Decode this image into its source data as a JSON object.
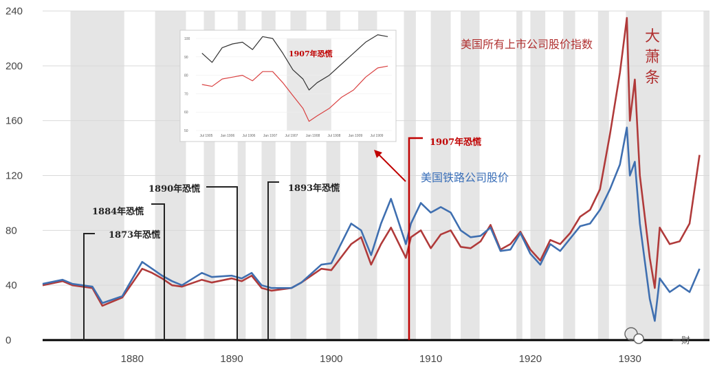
{
  "chart_data": [
    {
      "type": "line",
      "title": "",
      "xlabel": "",
      "ylabel": "",
      "xlim": [
        1871,
        1938
      ],
      "ylim": [
        0,
        240
      ],
      "x_ticks": [
        "1880",
        "1890",
        "1900",
        "1910",
        "1920",
        "1930"
      ],
      "y_ticks": [
        "0",
        "40",
        "80",
        "120",
        "160",
        "200",
        "240"
      ],
      "grid": "horizontal",
      "shaded_periods": [
        [
          1873.8,
          1879.2
        ],
        [
          1882.3,
          1885.4
        ],
        [
          1887.2,
          1888.3
        ],
        [
          1890.6,
          1891.4
        ],
        [
          1893.0,
          1894.4
        ],
        [
          1895.9,
          1897.5
        ],
        [
          1899.5,
          1900.9
        ],
        [
          1902.7,
          1904.6
        ],
        [
          1907.3,
          1908.5
        ],
        [
          1910.0,
          1912.0
        ],
        [
          1913.0,
          1914.9
        ],
        [
          1918.6,
          1919.2
        ],
        [
          1920.0,
          1921.5
        ],
        [
          1923.3,
          1924.5
        ],
        [
          1926.8,
          1927.9
        ],
        [
          1929.6,
          1933.2
        ],
        [
          1937.4,
          1938.0
        ]
      ],
      "series": [
        {
          "name": "美国所有上市公司股价指数",
          "color": "#b03a3a",
          "x": [
            1871,
            1873,
            1874,
            1876,
            1877,
            1879,
            1881,
            1882,
            1883,
            1884,
            1885,
            1887,
            1888,
            1890,
            1891,
            1892,
            1893,
            1894,
            1896,
            1897,
            1899,
            1900,
            1902,
            1903,
            1904,
            1905,
            1906,
            1907.5,
            1908,
            1909,
            1910,
            1911,
            1912,
            1913,
            1914,
            1915,
            1916,
            1917,
            1918,
            1919,
            1920,
            1921,
            1922,
            1923,
            1924,
            1925,
            1926,
            1927,
            1928,
            1929,
            1929.7,
            1930,
            1930.5,
            1931,
            1932,
            1932.5,
            1933,
            1934,
            1935,
            1936,
            1937
          ],
          "values": [
            40,
            43,
            40,
            38,
            25,
            31,
            52,
            49,
            45,
            40,
            39,
            44,
            42,
            45,
            43,
            47,
            38,
            36,
            38,
            42,
            52,
            51,
            70,
            75,
            55,
            70,
            82,
            60,
            75,
            80,
            67,
            77,
            80,
            68,
            67,
            72,
            84,
            66,
            70,
            79,
            66,
            58,
            73,
            70,
            78,
            90,
            95,
            110,
            150,
            195,
            235,
            160,
            190,
            120,
            60,
            38,
            82,
            70,
            72,
            85,
            135
          ]
        },
        {
          "name": "美国铁路公司股价",
          "color": "#3f6fb0",
          "x": [
            1871,
            1873,
            1874,
            1876,
            1877,
            1879,
            1881,
            1882,
            1883,
            1884,
            1885,
            1887,
            1888,
            1890,
            1891,
            1892,
            1893,
            1894,
            1896,
            1897,
            1899,
            1900,
            1902,
            1903,
            1904,
            1905,
            1906,
            1907.5,
            1908,
            1909,
            1910,
            1911,
            1912,
            1913,
            1914,
            1915,
            1916,
            1917,
            1918,
            1919,
            1920,
            1921,
            1922,
            1923,
            1924,
            1925,
            1926,
            1927,
            1928,
            1929,
            1929.7,
            1930,
            1930.5,
            1931,
            1932,
            1932.5,
            1933,
            1934,
            1935,
            1936,
            1937
          ],
          "values": [
            41,
            44,
            41,
            39,
            27,
            32,
            57,
            52,
            47,
            43,
            40,
            49,
            46,
            47,
            45,
            49,
            40,
            38,
            38,
            42,
            55,
            56,
            85,
            80,
            62,
            85,
            103,
            70,
            85,
            100,
            93,
            97,
            93,
            80,
            75,
            76,
            82,
            65,
            66,
            78,
            63,
            55,
            70,
            65,
            74,
            83,
            85,
            95,
            110,
            128,
            155,
            120,
            130,
            85,
            30,
            14,
            45,
            35,
            40,
            35,
            52
          ]
        }
      ],
      "annotations": [
        {
          "text": "1873年恐慌",
          "x": 1873.3
        },
        {
          "text": "1884年恐慌",
          "x": 1884.0
        },
        {
          "text": "1890年恐慌",
          "x": 1890.1
        },
        {
          "text": "1893年恐慌",
          "x": 1893.1
        },
        {
          "text": "1907年恐慌",
          "x": 1907.1
        },
        {
          "text": "大萧条"
        }
      ]
    },
    {
      "type": "line",
      "title": "1907年恐慌",
      "xlabel": "",
      "ylabel": "",
      "ylim": [
        50,
        100
      ],
      "x_ticks": [
        "Jul 1905",
        "Jan 1906",
        "Jul 1906",
        "Jan 1907",
        "Jul 1907",
        "Jan 1908",
        "Jul 1908",
        "Jan 1909",
        "Jul 1909"
      ],
      "y_ticks": [
        "50",
        "60",
        "70",
        "80",
        "90",
        "100"
      ],
      "shaded_periods": [
        [
          1907.35,
          1908.45
        ]
      ],
      "series": [
        {
          "name": "",
          "color": "#333333",
          "x": [
            1905.25,
            1905.5,
            1905.75,
            1906.0,
            1906.25,
            1906.5,
            1906.75,
            1907.0,
            1907.25,
            1907.5,
            1907.75,
            1907.9,
            1908.1,
            1908.4,
            1908.7,
            1909.0,
            1909.3,
            1909.6,
            1909.85
          ],
          "values": [
            92,
            87,
            95,
            97,
            98,
            94,
            101,
            100,
            92,
            83,
            78,
            72,
            76,
            80,
            86,
            92,
            98,
            102,
            101
          ]
        },
        {
          "name": "",
          "color": "#d94040",
          "x": [
            1905.25,
            1905.5,
            1905.75,
            1906.0,
            1906.25,
            1906.5,
            1906.75,
            1907.0,
            1907.25,
            1907.5,
            1907.75,
            1907.9,
            1908.1,
            1908.4,
            1908.7,
            1909.0,
            1909.3,
            1909.6,
            1909.85
          ],
          "values": [
            75,
            74,
            78,
            79,
            80,
            77,
            82,
            82,
            76,
            69,
            62,
            55,
            58,
            62,
            68,
            72,
            79,
            84,
            85
          ]
        }
      ]
    }
  ],
  "labels": {
    "all_stocks": "美国所有上市公司股价指数",
    "railroad": "美国铁路公司股价",
    "great_depression": [
      "大",
      "萧",
      "条"
    ],
    "p1873": "1873年恐慌",
    "p1884": "1884年恐慌",
    "p1890": "1890年恐慌",
    "p1893": "1893年恐慌",
    "p1907": "1907年恐慌",
    "inset_title": "1907年恐慌",
    "watermark": "一财"
  },
  "colors": {
    "all_stocks": "#b03a3a",
    "railroad": "#3f6fb0",
    "shade": "#e5e5e5",
    "annotation_red": "#c00000"
  }
}
